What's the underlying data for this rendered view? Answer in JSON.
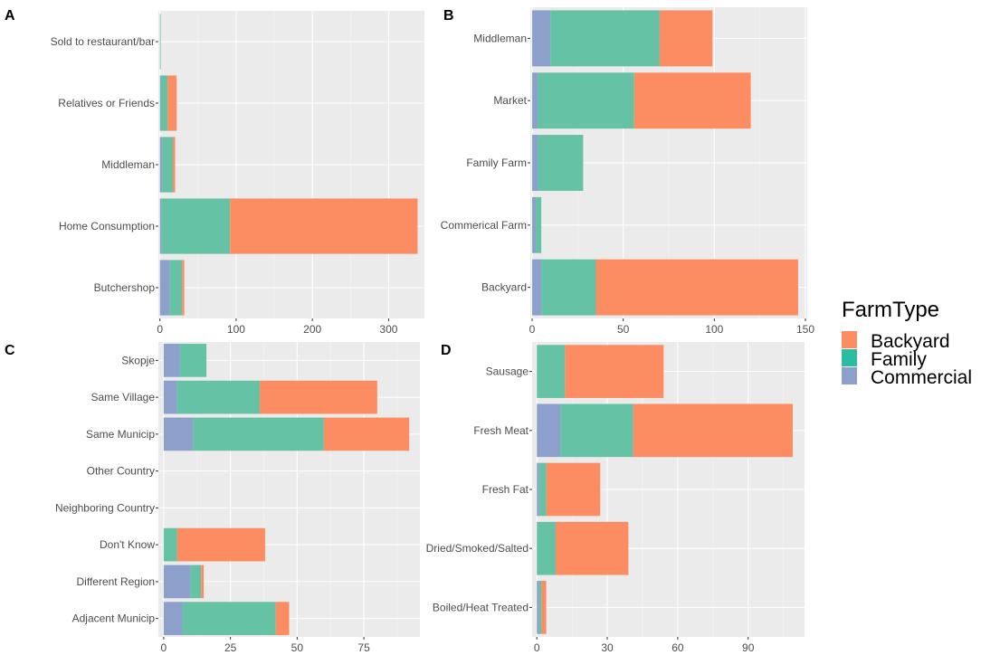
{
  "legend": {
    "title": "FarmType",
    "entries": [
      {
        "name": "Backyard",
        "color": "#fc8d62"
      },
      {
        "name": "Family",
        "color": "#66c2a5"
      },
      {
        "name": "Commercial",
        "color": "#8da0cb"
      }
    ]
  },
  "chart_data": [
    {
      "type": "bar",
      "orientation": "horizontal",
      "stacked": true,
      "panel_label": "A",
      "categories": [
        "Sold to restaurant/bar",
        "Relatives or Friends",
        "Middleman",
        "Home Consumption",
        "Butchershop"
      ],
      "series": [
        {
          "name": "Commercial",
          "values": [
            0,
            1,
            3,
            2,
            13
          ]
        },
        {
          "name": "Family",
          "values": [
            1,
            9,
            14,
            90,
            16
          ]
        },
        {
          "name": "Backyard",
          "values": [
            0,
            12,
            3,
            246,
            3
          ]
        }
      ],
      "xlim": [
        -2,
        347
      ],
      "xticks": [
        0,
        100,
        200,
        300
      ],
      "xlabel": "",
      "ylabel": "",
      "title": ""
    },
    {
      "type": "bar",
      "orientation": "horizontal",
      "stacked": true,
      "panel_label": "B",
      "categories": [
        "Middleman",
        "Market",
        "Family Farm",
        "Commerical Farm",
        "Backyard"
      ],
      "series": [
        {
          "name": "Commercial",
          "values": [
            10,
            3,
            3,
            2,
            5
          ]
        },
        {
          "name": "Family",
          "values": [
            60,
            53,
            25,
            3,
            30
          ]
        },
        {
          "name": "Backyard",
          "values": [
            29,
            64,
            0,
            0,
            111
          ]
        }
      ],
      "xlim": [
        -1,
        151
      ],
      "xticks": [
        0,
        50,
        100,
        150
      ],
      "xlabel": "",
      "ylabel": "",
      "title": ""
    },
    {
      "type": "bar",
      "orientation": "horizontal",
      "stacked": true,
      "panel_label": "C",
      "categories": [
        "Skopje",
        "Same Village",
        "Same Municip",
        "Other Country",
        "Neighboring Country",
        "Don't Know",
        "Different Region",
        "Adjacent Municip"
      ],
      "series": [
        {
          "name": "Commercial",
          "values": [
            6,
            5,
            11,
            0,
            0,
            0,
            10,
            7
          ]
        },
        {
          "name": "Family",
          "values": [
            10,
            31,
            49,
            0,
            0,
            5,
            4,
            35
          ]
        },
        {
          "name": "Backyard",
          "values": [
            0,
            44,
            32,
            0,
            0,
            33,
            1,
            5
          ]
        }
      ],
      "xlim": [
        -2,
        96
      ],
      "xticks": [
        0,
        25,
        50,
        75
      ],
      "xlabel": "",
      "ylabel": "",
      "title": ""
    },
    {
      "type": "bar",
      "orientation": "horizontal",
      "stacked": true,
      "panel_label": "D",
      "categories": [
        "Sausage",
        "Fresh Meat",
        "Fresh Fat",
        "Dried/Smoked/Salted",
        "Boiled/Heat Treated"
      ],
      "series": [
        {
          "name": "Commercial",
          "values": [
            0,
            10,
            1,
            0,
            1
          ]
        },
        {
          "name": "Family",
          "values": [
            12,
            31,
            3,
            8,
            1
          ]
        },
        {
          "name": "Backyard",
          "values": [
            42,
            68,
            23,
            31,
            2
          ]
        }
      ],
      "xlim": [
        -2,
        114
      ],
      "xticks": [
        0,
        30,
        60,
        90
      ],
      "xlabel": "",
      "ylabel": "",
      "title": ""
    }
  ]
}
